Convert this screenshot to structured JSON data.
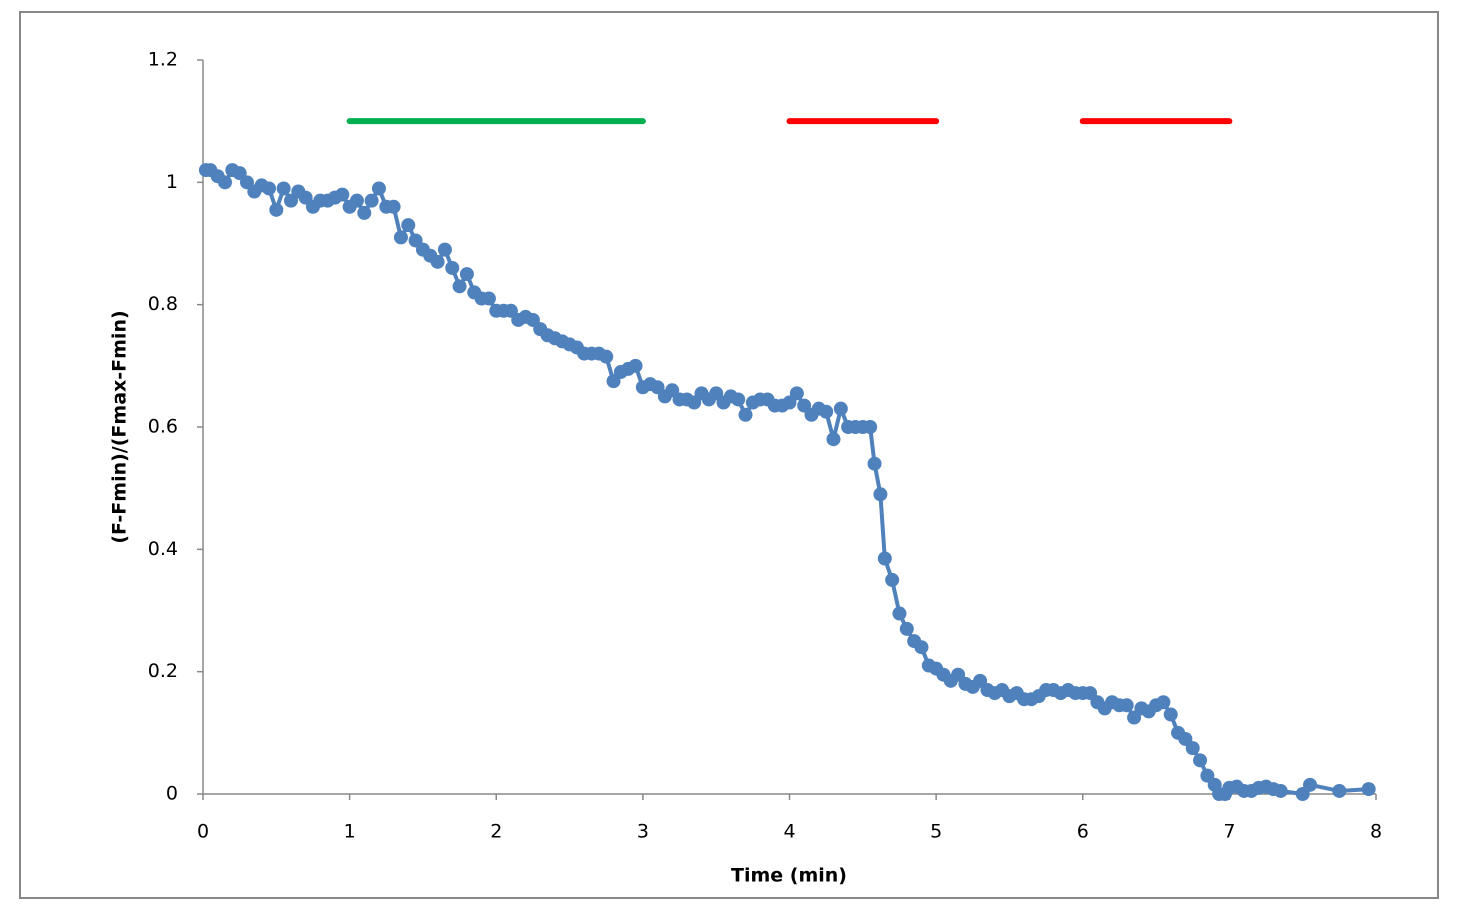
{
  "chart_data": {
    "type": "line",
    "xlabel": "Time (min)",
    "ylabel": "(F-Fmin)/(Fmax-Fmin)",
    "xlim": [
      0,
      8
    ],
    "xticks": [
      0,
      1,
      2,
      3,
      4,
      5,
      6,
      7,
      8
    ],
    "ylim": [
      0,
      1.2
    ],
    "yticks": [
      {
        "value": 0,
        "label": "0"
      },
      {
        "value": 0.2,
        "label": "0.2"
      },
      {
        "value": 0.4,
        "label": "0.4"
      },
      {
        "value": 0.6,
        "label": "0.6"
      },
      {
        "value": 0.8,
        "label": "0.8"
      },
      {
        "value": 1,
        "label": "1"
      },
      {
        "value": 1.2,
        "label": "1.2"
      }
    ],
    "intervals": [
      {
        "start": 1,
        "end": 3,
        "y": 1.1,
        "color": "#00b050"
      },
      {
        "start": 4,
        "end": 5,
        "y": 1.1,
        "color": "#ff0000"
      },
      {
        "start": 6,
        "end": 7,
        "y": 1.1,
        "color": "#ff0000"
      }
    ],
    "series": [
      {
        "color": "#4f81bd",
        "x": [
          0.02,
          0.05,
          0.1,
          0.15,
          0.2,
          0.25,
          0.3,
          0.35,
          0.4,
          0.45,
          0.5,
          0.55,
          0.6,
          0.65,
          0.7,
          0.75,
          0.8,
          0.85,
          0.9,
          0.95,
          1.0,
          1.05,
          1.1,
          1.15,
          1.2,
          1.25,
          1.3,
          1.35,
          1.4,
          1.45,
          1.5,
          1.55,
          1.6,
          1.65,
          1.7,
          1.75,
          1.8,
          1.85,
          1.9,
          1.95,
          2.0,
          2.05,
          2.1,
          2.15,
          2.2,
          2.25,
          2.3,
          2.35,
          2.4,
          2.45,
          2.5,
          2.55,
          2.6,
          2.65,
          2.7,
          2.75,
          2.8,
          2.85,
          2.9,
          2.95,
          3.0,
          3.05,
          3.1,
          3.15,
          3.2,
          3.25,
          3.3,
          3.35,
          3.4,
          3.45,
          3.5,
          3.55,
          3.6,
          3.65,
          3.7,
          3.75,
          3.8,
          3.85,
          3.9,
          3.95,
          4.0,
          4.05,
          4.1,
          4.15,
          4.2,
          4.25,
          4.3,
          4.35,
          4.4,
          4.45,
          4.5,
          4.55,
          4.58,
          4.62,
          4.65,
          4.7,
          4.75,
          4.8,
          4.85,
          4.9,
          4.95,
          5.0,
          5.05,
          5.1,
          5.15,
          5.2,
          5.25,
          5.3,
          5.35,
          5.4,
          5.45,
          5.5,
          5.55,
          5.6,
          5.65,
          5.7,
          5.75,
          5.8,
          5.85,
          5.9,
          5.95,
          6.0,
          6.05,
          6.1,
          6.15,
          6.2,
          6.25,
          6.3,
          6.35,
          6.4,
          6.45,
          6.5,
          6.55,
          6.6,
          6.65,
          6.7,
          6.75,
          6.8,
          6.85,
          6.9,
          6.93,
          6.97,
          7.0,
          7.05,
          7.1,
          7.15,
          7.2,
          7.25,
          7.3,
          7.35,
          7.5,
          7.55,
          7.75,
          7.95
        ],
        "values": [
          1.02,
          1.02,
          1.01,
          1.0,
          1.02,
          1.015,
          1.0,
          0.985,
          0.995,
          0.99,
          0.955,
          0.99,
          0.97,
          0.985,
          0.975,
          0.96,
          0.97,
          0.97,
          0.975,
          0.98,
          0.96,
          0.97,
          0.95,
          0.97,
          0.99,
          0.96,
          0.96,
          0.91,
          0.93,
          0.905,
          0.89,
          0.88,
          0.87,
          0.89,
          0.86,
          0.83,
          0.85,
          0.82,
          0.81,
          0.81,
          0.79,
          0.79,
          0.79,
          0.775,
          0.78,
          0.775,
          0.76,
          0.75,
          0.745,
          0.74,
          0.735,
          0.73,
          0.72,
          0.72,
          0.72,
          0.715,
          0.675,
          0.69,
          0.695,
          0.7,
          0.665,
          0.67,
          0.665,
          0.65,
          0.66,
          0.645,
          0.645,
          0.64,
          0.655,
          0.645,
          0.655,
          0.64,
          0.65,
          0.645,
          0.62,
          0.64,
          0.645,
          0.645,
          0.635,
          0.635,
          0.64,
          0.655,
          0.635,
          0.62,
          0.63,
          0.625,
          0.58,
          0.63,
          0.6,
          0.6,
          0.6,
          0.6,
          0.54,
          0.49,
          0.385,
          0.35,
          0.295,
          0.27,
          0.25,
          0.24,
          0.21,
          0.205,
          0.195,
          0.185,
          0.195,
          0.18,
          0.175,
          0.185,
          0.17,
          0.165,
          0.17,
          0.16,
          0.165,
          0.155,
          0.155,
          0.16,
          0.17,
          0.17,
          0.165,
          0.17,
          0.165,
          0.165,
          0.165,
          0.15,
          0.14,
          0.15,
          0.145,
          0.145,
          0.125,
          0.14,
          0.135,
          0.145,
          0.15,
          0.13,
          0.1,
          0.09,
          0.075,
          0.055,
          0.03,
          0.015,
          0.0,
          0.0,
          0.01,
          0.012,
          0.005,
          0.005,
          0.01,
          0.012,
          0.008,
          0.005,
          0.0,
          0.015,
          0.005,
          0.008
        ]
      }
    ]
  }
}
